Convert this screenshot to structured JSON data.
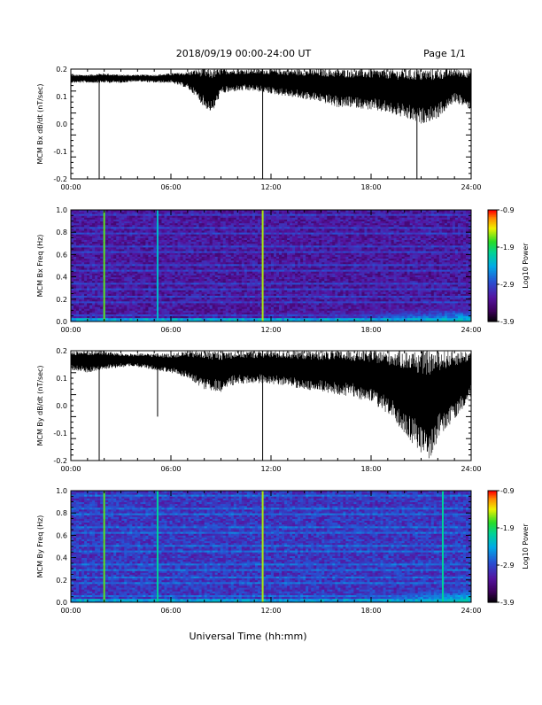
{
  "header": {
    "title": "2018/09/19  00:00-24:00 UT",
    "page": "Page 1/1"
  },
  "xlabel": "Universal Time (hh:mm)",
  "chart_data": [
    {
      "type": "line",
      "name": "bx-waveform",
      "ylabel": "MCM Bx dB/dt (nT/sec)",
      "ylim": [
        -0.2,
        0.2
      ],
      "yticks": [
        "0.2",
        "0.1",
        "0.0",
        "-0.1",
        "-0.2"
      ],
      "xlim": [
        0,
        24
      ],
      "xticks": [
        "00:00",
        "06:00",
        "12:00",
        "18:00",
        "24:00"
      ],
      "envelope": {
        "hours": [
          0,
          1,
          2,
          3,
          4,
          5,
          6,
          7,
          7.5,
          8,
          8.5,
          9,
          10,
          11,
          12,
          13,
          14,
          15,
          16,
          17,
          18,
          19,
          20,
          21,
          22,
          23,
          24
        ],
        "upper": [
          0.18,
          0.18,
          0.185,
          0.18,
          0.18,
          0.18,
          0.185,
          0.19,
          0.2,
          0.2,
          0.2,
          0.2,
          0.2,
          0.2,
          0.2,
          0.2,
          0.2,
          0.2,
          0.2,
          0.2,
          0.2,
          0.2,
          0.2,
          0.2,
          0.2,
          0.2,
          0.2
        ],
        "lower": [
          0.15,
          0.15,
          0.15,
          0.15,
          0.155,
          0.15,
          0.15,
          0.13,
          0.1,
          0.06,
          0.04,
          0.11,
          0.12,
          0.12,
          0.11,
          0.1,
          0.09,
          0.08,
          0.06,
          0.06,
          0.05,
          0.04,
          0.02,
          0.0,
          0.02,
          0.08,
          0.05
        ]
      },
      "spikes": [
        {
          "t": 1.7,
          "y": -0.2
        },
        {
          "t": 11.5,
          "y": -0.2
        },
        {
          "t": 20.75,
          "y": -0.2
        }
      ]
    },
    {
      "type": "heatmap",
      "name": "bx-spectrogram",
      "ylabel": "MCM Bx Freq (Hz)",
      "ylim": [
        0,
        1.0
      ],
      "yticks": [
        "1.0",
        "0.8",
        "0.6",
        "0.4",
        "0.2",
        "0.0"
      ],
      "xlim": [
        0,
        24
      ],
      "xticks": [
        "00:00",
        "06:00",
        "12:00",
        "18:00",
        "24:00"
      ],
      "colorbar": {
        "label": "Log10 Power",
        "min": -3.9,
        "max": -0.9,
        "ticks": [
          "-0.9",
          "-1.9",
          "-2.9",
          "-3.9"
        ]
      },
      "background_level": 0.22,
      "harmonic_spacing_hz": 0.056,
      "harmonic_level": 0.32,
      "activity": [
        {
          "t0": 12,
          "t1": 24,
          "f0": 0,
          "f1": 0.3,
          "level": 0.6
        }
      ],
      "vertical_lines": [
        {
          "t": 2.0,
          "level": 0.75
        },
        {
          "t": 5.2,
          "level": 0.55
        },
        {
          "t": 11.5,
          "level": 0.8
        }
      ]
    },
    {
      "type": "line",
      "name": "by-waveform",
      "ylabel": "MCM By dB/dt (nT/sec)",
      "ylim": [
        -0.2,
        0.2
      ],
      "yticks": [
        "0.2",
        "0.1",
        "0.0",
        "-0.1",
        "-0.2"
      ],
      "xlim": [
        0,
        24
      ],
      "xticks": [
        "00:00",
        "06:00",
        "12:00",
        "18:00",
        "24:00"
      ],
      "envelope": {
        "hours": [
          0,
          1,
          2,
          3,
          4,
          5,
          6,
          7,
          8,
          9,
          10,
          11,
          12,
          13,
          14,
          15,
          16,
          17,
          18,
          19,
          20,
          21,
          21.5,
          22,
          23,
          24
        ],
        "upper": [
          0.2,
          0.2,
          0.2,
          0.19,
          0.19,
          0.19,
          0.19,
          0.2,
          0.2,
          0.2,
          0.2,
          0.2,
          0.2,
          0.2,
          0.2,
          0.2,
          0.2,
          0.2,
          0.2,
          0.2,
          0.2,
          0.2,
          0.2,
          0.2,
          0.2,
          0.2
        ],
        "lower": [
          0.13,
          0.12,
          0.13,
          0.14,
          0.14,
          0.13,
          0.12,
          0.1,
          0.06,
          0.05,
          0.08,
          0.08,
          0.08,
          0.07,
          0.06,
          0.05,
          0.04,
          0.03,
          0.01,
          -0.03,
          -0.1,
          -0.18,
          -0.2,
          -0.13,
          -0.05,
          0.03
        ]
      },
      "spikes": [
        {
          "t": 1.7,
          "y": -0.2
        },
        {
          "t": 5.2,
          "y": -0.04
        },
        {
          "t": 11.5,
          "y": -0.2
        }
      ]
    },
    {
      "type": "heatmap",
      "name": "by-spectrogram",
      "ylabel": "MCM By Freq (Hz)",
      "ylim": [
        0,
        1.0
      ],
      "yticks": [
        "1.0",
        "0.8",
        "0.6",
        "0.4",
        "0.2",
        "0.0"
      ],
      "xlim": [
        0,
        24
      ],
      "xticks": [
        "00:00",
        "06:00",
        "12:00",
        "18:00",
        "24:00"
      ],
      "colorbar": {
        "label": "Log10 Power",
        "min": -3.9,
        "max": -0.9,
        "ticks": [
          "-0.9",
          "-1.9",
          "-2.9",
          "-3.9"
        ]
      },
      "background_level": 0.3,
      "harmonic_spacing_hz": 0.056,
      "harmonic_level": 0.4,
      "activity": [
        {
          "t0": 13,
          "t1": 24,
          "f0": 0,
          "f1": 0.35,
          "level": 0.62
        }
      ],
      "vertical_lines": [
        {
          "t": 2.0,
          "level": 0.75
        },
        {
          "t": 5.2,
          "level": 0.62
        },
        {
          "t": 11.5,
          "level": 0.8
        },
        {
          "t": 22.3,
          "level": 0.62
        }
      ]
    }
  ]
}
